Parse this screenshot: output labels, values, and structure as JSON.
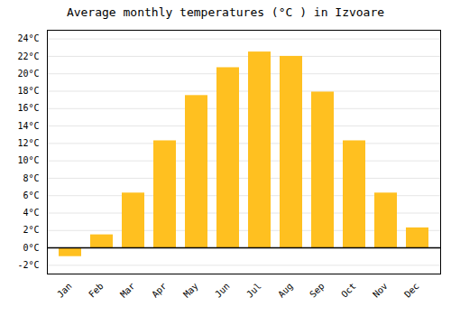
{
  "chart_data": {
    "type": "bar",
    "title": "Average monthly temperatures (°C ) in Izvoare",
    "categories": [
      "Jan",
      "Feb",
      "Mar",
      "Apr",
      "May",
      "Jun",
      "Jul",
      "Aug",
      "Sep",
      "Oct",
      "Nov",
      "Dec"
    ],
    "values": [
      -1.0,
      1.5,
      6.3,
      12.3,
      17.5,
      20.7,
      22.5,
      22.0,
      17.9,
      12.3,
      6.3,
      2.3
    ],
    "color": "#FFC020",
    "ylim": [
      -3,
      25
    ],
    "yticks": [
      {
        "value": -2,
        "label": "-2°C"
      },
      {
        "value": 0,
        "label": "0°C"
      },
      {
        "value": 2,
        "label": "2°C"
      },
      {
        "value": 4,
        "label": "4°C"
      },
      {
        "value": 6,
        "label": "6°C"
      },
      {
        "value": 8,
        "label": "8°C"
      },
      {
        "value": 10,
        "label": "10°C"
      },
      {
        "value": 12,
        "label": "12°C"
      },
      {
        "value": 14,
        "label": "14°C"
      },
      {
        "value": 16,
        "label": "16°C"
      },
      {
        "value": 18,
        "label": "18°C"
      },
      {
        "value": 20,
        "label": "20°C"
      },
      {
        "value": 22,
        "label": "22°C"
      },
      {
        "value": 24,
        "label": "24°C"
      }
    ],
    "grid": true
  }
}
